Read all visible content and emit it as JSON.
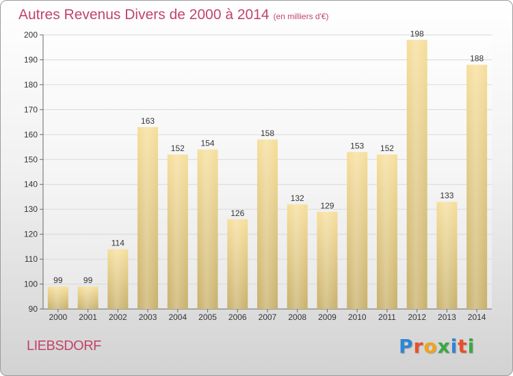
{
  "title": "Autres Revenus Divers de 2000 à 2014",
  "title_unit": "(en milliers d'€)",
  "commune": "LIEBSDORF",
  "logo": {
    "text": "Proxiti",
    "letters": [
      {
        "char": "P",
        "color": "#2e86d6"
      },
      {
        "char": "r",
        "color": "#e8502a"
      },
      {
        "char": "o",
        "color": "#f2a31b"
      },
      {
        "char": "x",
        "color": "#3aa745"
      },
      {
        "char": "i",
        "color": "#2e86d6"
      },
      {
        "char": "t",
        "color": "#e8502a"
      },
      {
        "char": "i",
        "color": "#3aa745"
      }
    ]
  },
  "colors": {
    "title": "#c0446a",
    "bar_top": "#f6de9a",
    "bar_bottom": "#c8b06a",
    "grid": "#d8d8d8",
    "axis_text": "#333333"
  },
  "chart_data": {
    "type": "bar",
    "categories": [
      "2000",
      "2001",
      "2002",
      "2003",
      "2004",
      "2005",
      "2006",
      "2007",
      "2008",
      "2009",
      "2010",
      "2011",
      "2012",
      "2013",
      "2014"
    ],
    "values": [
      99,
      99,
      114,
      163,
      152,
      154,
      126,
      158,
      132,
      129,
      153,
      152,
      198,
      133,
      188
    ],
    "ylim": [
      90,
      200
    ],
    "yticks": [
      90,
      100,
      110,
      120,
      130,
      140,
      150,
      160,
      170,
      180,
      190,
      200
    ],
    "grid": true,
    "data_labels": true
  }
}
